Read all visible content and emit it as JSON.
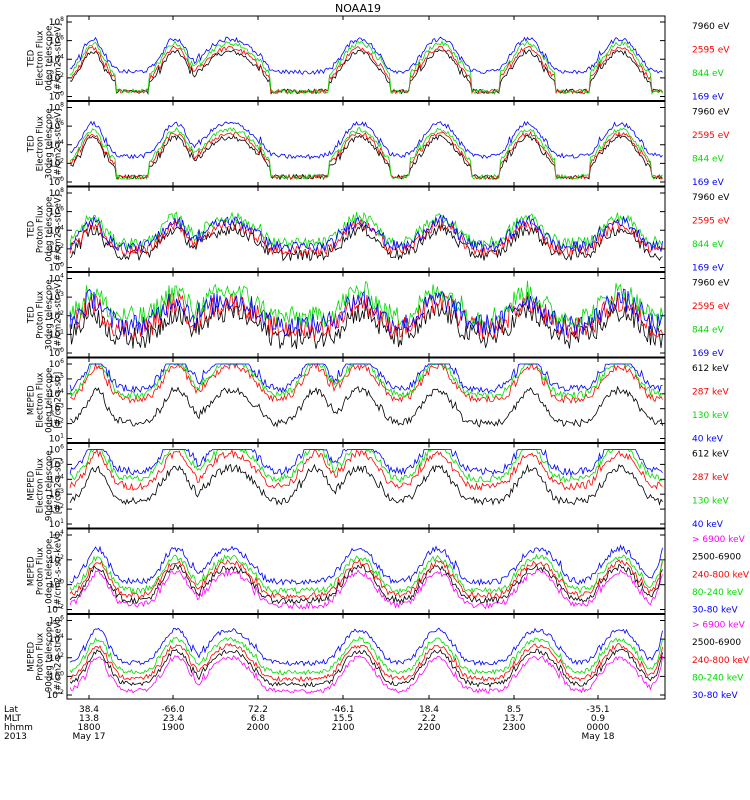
{
  "title": "NOAA19",
  "colors": {
    "black": "#000000",
    "red": "#ff0000",
    "green": "#00dd00",
    "blue": "#0000ff",
    "magenta": "#ff00ff"
  },
  "chart_data": [
    {
      "type": "line",
      "ylabel": [
        "TED",
        "Electron Flux",
        "0deg telescope",
        "[#/cm2-s-str-eV]"
      ],
      "log_y": true,
      "y_exponents": [
        0,
        2,
        4,
        6,
        8
      ],
      "series": [
        {
          "name": "7960 eV",
          "color": "#000000",
          "pattern": "b1",
          "center": 1.2
        },
        {
          "name": "2595 eV",
          "color": "#ff0000",
          "pattern": "b1",
          "center": 1.6
        },
        {
          "name": "844 eV",
          "color": "#00dd00",
          "pattern": "b1",
          "center": 2.1
        },
        {
          "name": "169 eV",
          "color": "#0000ff",
          "pattern": "b1",
          "center": 2.6
        }
      ]
    },
    {
      "type": "line",
      "ylabel": [
        "TED",
        "Electron Flux",
        "30deg telescope",
        "[#/cm2-s-str-eV]"
      ],
      "log_y": true,
      "y_exponents": [
        0,
        2,
        4,
        6,
        8
      ],
      "series": [
        {
          "name": "7960 eV",
          "color": "#000000",
          "pattern": "b1",
          "center": 1.2
        },
        {
          "name": "2595 eV",
          "color": "#ff0000",
          "pattern": "b1",
          "center": 1.6
        },
        {
          "name": "844 eV",
          "color": "#00dd00",
          "pattern": "b1",
          "center": 2.0
        },
        {
          "name": "169 eV",
          "color": "#0000ff",
          "pattern": "b1",
          "center": 2.7
        }
      ]
    },
    {
      "type": "line",
      "ylabel": [
        "TED",
        "Proton Flux",
        "0deg telescope",
        "[#/cm2-s-str-eV]"
      ],
      "log_y": true,
      "y_exponents": [
        0,
        2,
        4,
        6,
        8
      ],
      "series": [
        {
          "name": "7960 eV",
          "color": "#000000",
          "pattern": "p",
          "center": 1.3
        },
        {
          "name": "2595 eV",
          "color": "#ff0000",
          "pattern": "p",
          "center": 1.8
        },
        {
          "name": "844 eV",
          "color": "#00dd00",
          "pattern": "p",
          "center": 2.6
        },
        {
          "name": "169 eV",
          "color": "#0000ff",
          "pattern": "p",
          "center": 2.2
        }
      ]
    },
    {
      "type": "line",
      "ylabel": [
        "TED",
        "Proton Flux",
        "30deg telescope",
        "[#/cm2-s-str-eV]"
      ],
      "log_y": true,
      "y_exponents": [
        0,
        1,
        2,
        3,
        4
      ],
      "series": [
        {
          "name": "7960 eV",
          "color": "#000000",
          "pattern": "p",
          "center": 0.8
        },
        {
          "name": "2595 eV",
          "color": "#ff0000",
          "pattern": "p",
          "center": 1.3
        },
        {
          "name": "844 eV",
          "color": "#00dd00",
          "pattern": "p",
          "center": 1.9
        },
        {
          "name": "169 eV",
          "color": "#0000ff",
          "pattern": "p",
          "center": 1.5
        }
      ]
    },
    {
      "type": "line",
      "ylabel": [
        "MEPED",
        "Electron Flux",
        "0deg telescope",
        "[#/cm2-s-str]"
      ],
      "log_y": true,
      "y_exponents": [
        1,
        2,
        3,
        4,
        5,
        6
      ],
      "series": [
        {
          "name": "612 keV",
          "color": "#000000",
          "pattern": "m",
          "center": 2.0
        },
        {
          "name": "287 keV",
          "color": "#ff0000",
          "pattern": "m",
          "center": 3.6
        },
        {
          "name": "130 keV",
          "color": "#00dd00",
          "pattern": "m",
          "center": 3.9
        },
        {
          "name": "40 keV",
          "color": "#0000ff",
          "pattern": "m",
          "center": 4.3
        }
      ]
    },
    {
      "type": "line",
      "ylabel": [
        "MEPED",
        "Electron Flux",
        "90deg telescope",
        "[#/cm2-s-str]"
      ],
      "log_y": true,
      "y_exponents": [
        1,
        2,
        3,
        4,
        5,
        6
      ],
      "series": [
        {
          "name": "612 keV",
          "color": "#000000",
          "pattern": "m",
          "center": 2.5
        },
        {
          "name": "287 keV",
          "color": "#ff0000",
          "pattern": "m",
          "center": 3.5
        },
        {
          "name": "130 keV",
          "color": "#00dd00",
          "pattern": "m",
          "center": 4.0
        },
        {
          "name": "40 keV",
          "color": "#0000ff",
          "pattern": "m",
          "center": 4.5
        }
      ]
    },
    {
      "type": "line",
      "ylabel": [
        "MEPED",
        "Proton Flux",
        "0deg telescope",
        "[#/cm2-s-str-keV]"
      ],
      "log_y": true,
      "y_exponents": [
        -2,
        0,
        2,
        4
      ],
      "series": [
        {
          "name": "> 6900 keV",
          "color": "#ff00ff",
          "pattern": "q",
          "center": -1.7
        },
        {
          "name": "2500-6900",
          "color": "#000000",
          "pattern": "q",
          "center": -1.3
        },
        {
          "name": "240-800 keV",
          "color": "#ff0000",
          "pattern": "q",
          "center": -0.9
        },
        {
          "name": "80-240 keV",
          "color": "#00dd00",
          "pattern": "q",
          "center": -0.5
        },
        {
          "name": "30-80 keV",
          "color": "#0000ff",
          "pattern": "q",
          "center": 0.2
        }
      ]
    },
    {
      "type": "line",
      "ylabel": [
        "MEPED",
        "Proton Flux",
        "90deg telescope",
        "[#/cm2-s-str-keV]"
      ],
      "log_y": true,
      "y_exponents": [
        -2,
        0,
        2,
        4,
        6
      ],
      "series": [
        {
          "name": "> 6900 keV",
          "color": "#ff00ff",
          "pattern": "q",
          "center": -1.6
        },
        {
          "name": "2500-6900",
          "color": "#000000",
          "pattern": "q",
          "center": -0.9
        },
        {
          "name": "240-800 keV",
          "color": "#ff0000",
          "pattern": "q",
          "center": -0.3
        },
        {
          "name": "80-240 keV",
          "color": "#00dd00",
          "pattern": "q",
          "center": 0.4
        },
        {
          "name": "30-80 keV",
          "color": "#0000ff",
          "pattern": "q",
          "center": 1.4
        }
      ]
    }
  ],
  "x_axis": {
    "row_labels": [
      "Lat",
      "MLT",
      "hhmm",
      "2013"
    ],
    "ticks": [
      {
        "lat": "38.4",
        "mlt": "13.8",
        "hhmm": "1800",
        "date": "May 17"
      },
      {
        "lat": "-66.0",
        "mlt": "23.4",
        "hhmm": "1900",
        "date": ""
      },
      {
        "lat": "72.2",
        "mlt": "6.8",
        "hhmm": "2000",
        "date": ""
      },
      {
        "lat": "-46.1",
        "mlt": "15.5",
        "hhmm": "2100",
        "date": ""
      },
      {
        "lat": "18.4",
        "mlt": "2.2",
        "hhmm": "2200",
        "date": ""
      },
      {
        "lat": "8.5",
        "mlt": "13.7",
        "hhmm": "2300",
        "date": ""
      },
      {
        "lat": "-35.1",
        "mlt": "0.9",
        "hhmm": "0000",
        "date": "May 18"
      }
    ]
  }
}
